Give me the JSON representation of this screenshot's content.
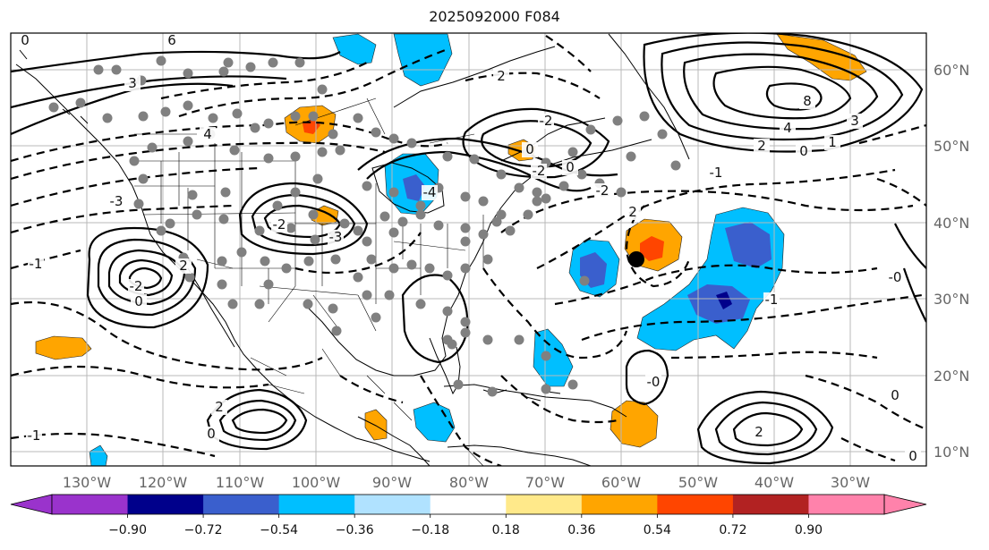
{
  "title": "2025092000 F084",
  "longitude_labels": [
    "130°W",
    "120°W",
    "110°W",
    "100°W",
    "90°W",
    "80°W",
    "70°W",
    "60°W",
    "50°W",
    "40°W",
    "30°W"
  ],
  "latitude_labels": [
    "60°N",
    "50°N",
    "40°N",
    "30°N",
    "20°N",
    "10°N"
  ],
  "colorbar": {
    "ticks": [
      "−0.90",
      "−0.72",
      "−0.54",
      "−0.36",
      "−0.18",
      "0.18",
      "0.36",
      "0.54",
      "0.72",
      "0.90"
    ],
    "colors": [
      "#9a33cc",
      "#00008b",
      "#3a5fcd",
      "#00bfff",
      "#b0e2ff",
      "#ffffff",
      "#ffe98a",
      "#ffa500",
      "#ff4500",
      "#b22222",
      "#ff82ab"
    ]
  },
  "contour_labels": [
    {
      "text": "0"
    },
    {
      "text": "3"
    },
    {
      "text": "4"
    },
    {
      "text": "6"
    },
    {
      "text": "8"
    },
    {
      "text": "3"
    },
    {
      "text": "4"
    },
    {
      "text": "2"
    },
    {
      "text": "0"
    },
    {
      "text": "1"
    },
    {
      "text": "-2"
    },
    {
      "text": "-3"
    },
    {
      "text": "-1"
    },
    {
      "text": "2"
    },
    {
      "text": "-2"
    },
    {
      "text": "0"
    },
    {
      "text": "2"
    },
    {
      "text": "-4"
    },
    {
      "text": "-3"
    },
    {
      "text": "-2"
    },
    {
      "text": "0"
    },
    {
      "text": "-0"
    },
    {
      "text": "2"
    },
    {
      "text": "0"
    },
    {
      "text": "-2"
    },
    {
      "text": "0"
    },
    {
      "text": "-2"
    },
    {
      "text": "0"
    },
    {
      "text": "2"
    },
    {
      "text": "-1"
    },
    {
      "text": "-0"
    },
    {
      "text": "-1"
    },
    {
      "text": "2"
    },
    {
      "text": "0"
    },
    {
      "text": "-1"
    }
  ],
  "highlight_marker": {
    "color": "#000000",
    "lon": -57.5,
    "lat": 35.0
  },
  "station_marker_color": "#808080"
}
